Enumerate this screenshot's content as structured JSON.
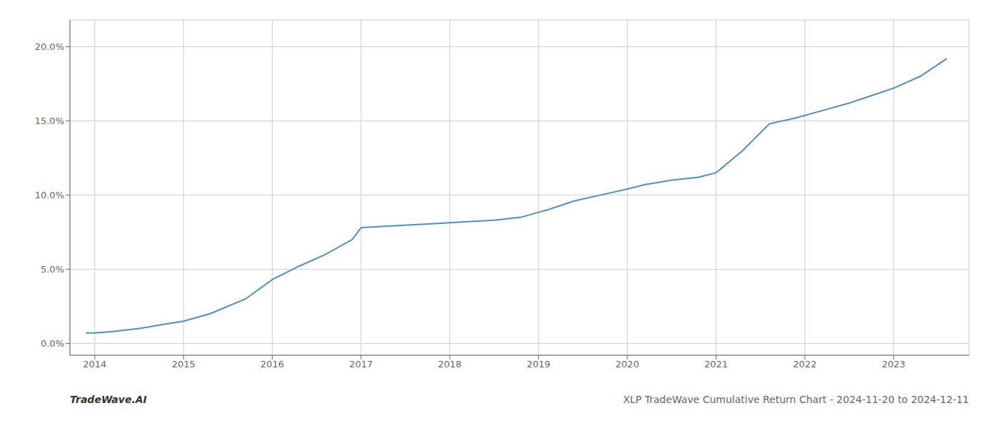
{
  "chart_data": {
    "type": "line",
    "title": "XLP TradeWave Cumulative Return Chart - 2024-11-20 to 2024-12-11",
    "annotations": [
      "TradeWave.AI"
    ],
    "x": [
      2013.9,
      2014.0,
      2014.2,
      2014.5,
      2014.8,
      2015.0,
      2015.3,
      2015.7,
      2016.0,
      2016.3,
      2016.6,
      2016.9,
      2017.0,
      2017.3,
      2017.6,
      2017.9,
      2018.2,
      2018.5,
      2018.8,
      2019.1,
      2019.4,
      2019.7,
      2020.0,
      2020.2,
      2020.5,
      2020.8,
      2021.0,
      2021.3,
      2021.6,
      2021.9,
      2022.2,
      2022.5,
      2022.8,
      2023.0,
      2023.3,
      2023.6
    ],
    "values": [
      0.007,
      0.007,
      0.008,
      0.01,
      0.013,
      0.015,
      0.02,
      0.03,
      0.043,
      0.052,
      0.06,
      0.07,
      0.078,
      0.079,
      0.08,
      0.081,
      0.082,
      0.083,
      0.085,
      0.09,
      0.096,
      0.1,
      0.104,
      0.107,
      0.11,
      0.112,
      0.115,
      0.13,
      0.148,
      0.152,
      0.157,
      0.162,
      0.168,
      0.172,
      0.18,
      0.192
    ],
    "color": "#4a90c4",
    "xlim": [
      2013.72,
      2023.85
    ],
    "ylim": [
      -0.008,
      0.218
    ],
    "xticks": [
      2014,
      2015,
      2016,
      2017,
      2018,
      2019,
      2020,
      2021,
      2022,
      2023
    ],
    "yticks": [
      {
        "value": 0.0,
        "label": "0.0%"
      },
      {
        "value": 0.05,
        "label": "5.0%"
      },
      {
        "value": 0.1,
        "label": "10.0%"
      },
      {
        "value": 0.15,
        "label": "15.0%"
      },
      {
        "value": 0.2,
        "label": "20.0%"
      }
    ],
    "grid": true
  }
}
